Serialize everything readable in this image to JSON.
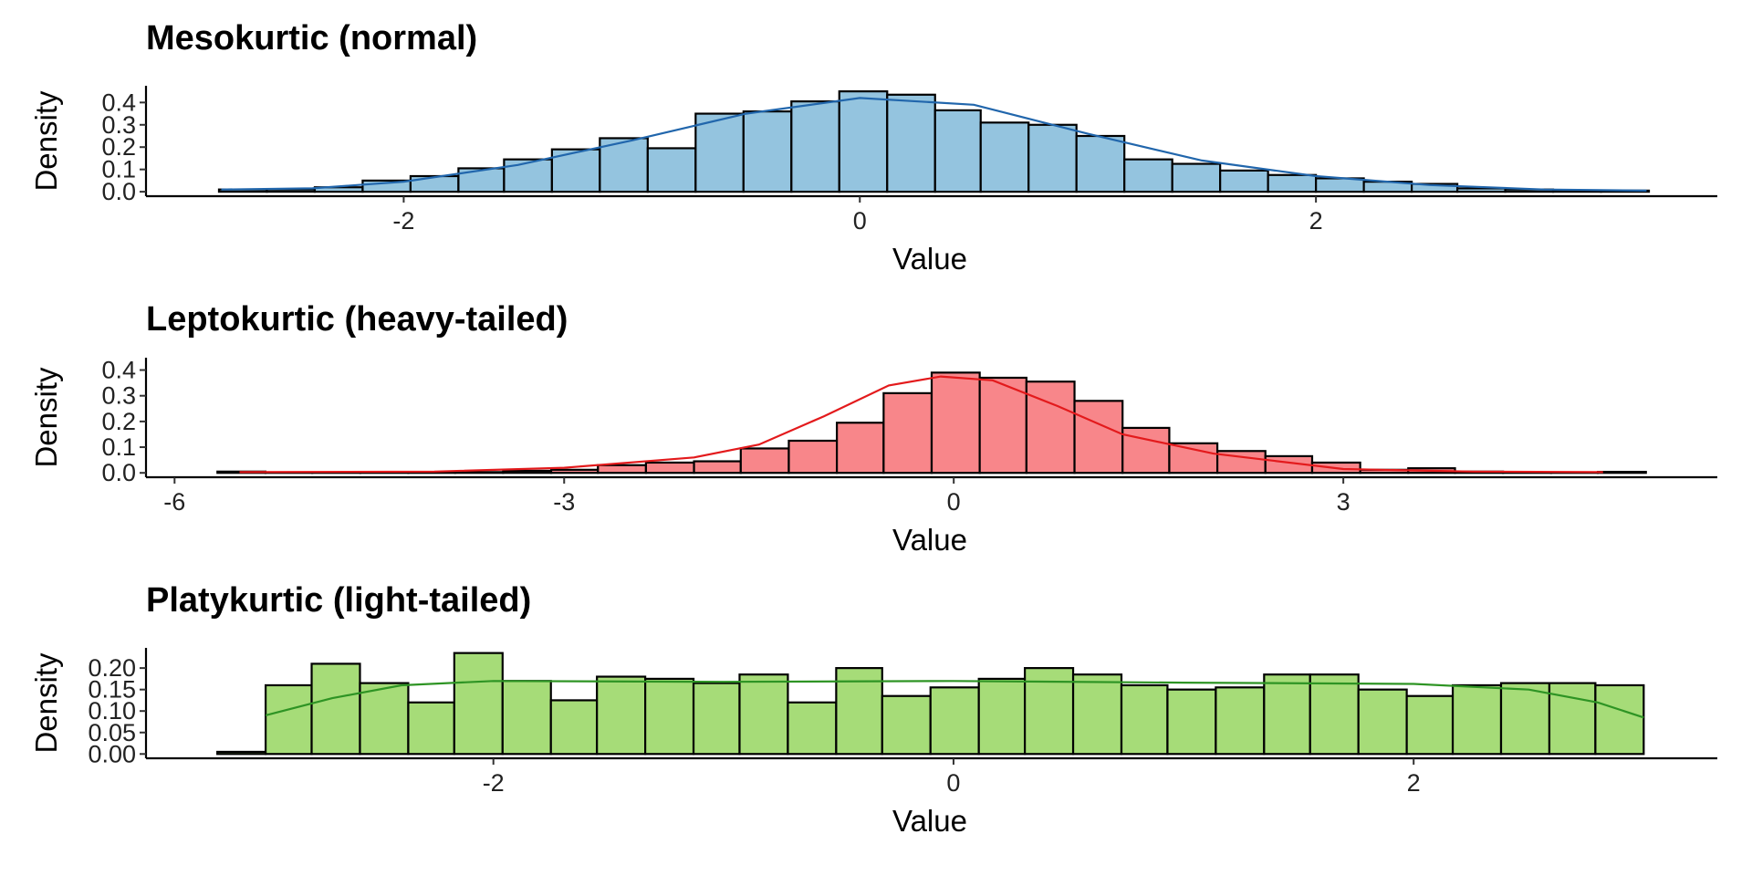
{
  "chart_data": [
    {
      "type": "histogram",
      "title": "Mesokurtic (normal)",
      "xlabel": "Value",
      "ylabel": "Density",
      "bins": [
        -2.81,
        -2.6,
        -2.39,
        -2.18,
        -1.97,
        -1.76,
        -1.56,
        -1.35,
        -1.14,
        -0.93,
        -0.72,
        -0.51,
        -0.3,
        -0.09,
        0.12,
        0.33,
        0.53,
        0.74,
        0.95,
        1.16,
        1.37,
        1.58,
        1.79,
        2.0,
        2.21,
        2.42,
        2.62,
        2.83,
        3.04,
        3.25,
        3.46
      ],
      "values": [
        0.01,
        0.01,
        0.02,
        0.05,
        0.07,
        0.105,
        0.145,
        0.19,
        0.24,
        0.195,
        0.35,
        0.36,
        0.405,
        0.45,
        0.435,
        0.365,
        0.31,
        0.3,
        0.25,
        0.145,
        0.125,
        0.095,
        0.075,
        0.06,
        0.045,
        0.035,
        0.015,
        0.01,
        0.005,
        0.005
      ],
      "color": "#94c4df",
      "edgecolor": "#000000",
      "density_curve": {
        "x": [
          -2.8,
          -2.4,
          -2,
          -1.5,
          -1,
          -0.5,
          0,
          0.5,
          1,
          1.5,
          2,
          2.5,
          3,
          3.45
        ],
        "values": [
          0.01,
          0.015,
          0.045,
          0.12,
          0.23,
          0.35,
          0.42,
          0.39,
          0.26,
          0.14,
          0.07,
          0.03,
          0.01,
          0.005
        ],
        "color": "#2166ac"
      },
      "xlim": [
        -3.13,
        3.76
      ],
      "ylim": [
        -0.02,
        0.475
      ],
      "xticks": [
        -2,
        0,
        2
      ],
      "yticks": [
        {
          "value": 0,
          "label": "0.0"
        },
        0.1,
        0.2,
        0.3,
        0.4
      ]
    },
    {
      "type": "histogram",
      "title": "Leptokurtic (heavy-tailed)",
      "xlabel": "Value",
      "ylabel": "Density",
      "bins": [
        -5.67,
        -5.3,
        -4.94,
        -4.57,
        -4.2,
        -3.84,
        -3.47,
        -3.1,
        -2.74,
        -2.37,
        -2.0,
        -1.64,
        -1.27,
        -0.9,
        -0.54,
        -0.17,
        0.2,
        0.56,
        0.93,
        1.3,
        1.66,
        2.03,
        2.4,
        2.76,
        3.13,
        3.5,
        3.86,
        4.23,
        4.6,
        4.96,
        5.33
      ],
      "values": [
        0.005,
        0.002,
        0.001,
        0.002,
        0.002,
        0.003,
        0.008,
        0.012,
        0.03,
        0.04,
        0.045,
        0.095,
        0.125,
        0.195,
        0.31,
        0.39,
        0.37,
        0.355,
        0.28,
        0.175,
        0.115,
        0.085,
        0.065,
        0.04,
        0.012,
        0.018,
        0.005,
        0.002,
        0.002,
        0.004
      ],
      "color": "#f8868a",
      "edgecolor": "#000000",
      "density_curve": {
        "x": [
          -5.5,
          -4,
          -3,
          -2,
          -1.5,
          -1,
          -0.5,
          -0.1,
          0.3,
          0.8,
          1.3,
          2,
          3,
          4,
          5
        ],
        "values": [
          0.003,
          0.005,
          0.02,
          0.06,
          0.11,
          0.22,
          0.34,
          0.375,
          0.36,
          0.26,
          0.15,
          0.075,
          0.015,
          0.005,
          0.003
        ],
        "color": "#e31a1c"
      },
      "xlim": [
        -6.22,
        5.88
      ],
      "ylim": [
        -0.017,
        0.448
      ],
      "xticks": [
        -6,
        -3,
        0,
        3
      ],
      "yticks": [
        {
          "value": 0,
          "label": "0.0"
        },
        0.1,
        0.2,
        0.3,
        0.4
      ]
    },
    {
      "type": "histogram",
      "title": "Platykurtic (light-tailed)",
      "xlabel": "Value",
      "ylabel": "Density",
      "bins": [
        -3.2,
        -2.99,
        -2.79,
        -2.58,
        -2.37,
        -2.17,
        -1.96,
        -1.75,
        -1.55,
        -1.34,
        -1.13,
        -0.93,
        -0.72,
        -0.51,
        -0.31,
        -0.1,
        0.11,
        0.31,
        0.52,
        0.73,
        0.93,
        1.14,
        1.35,
        1.55,
        1.76,
        1.97,
        2.17,
        2.38,
        2.59,
        2.79,
        3.0
      ],
      "values": [
        0.005,
        0.16,
        0.21,
        0.165,
        0.12,
        0.235,
        0.17,
        0.125,
        0.18,
        0.175,
        0.165,
        0.185,
        0.12,
        0.2,
        0.135,
        0.155,
        0.175,
        0.2,
        0.185,
        0.16,
        0.15,
        0.155,
        0.185,
        0.185,
        0.15,
        0.135,
        0.16,
        0.165,
        0.165,
        0.16
      ],
      "color": "#a6dc78",
      "edgecolor": "#000000",
      "density_curve": {
        "x": [
          -2.99,
          -2.7,
          -2.4,
          -2,
          -1,
          0,
          1,
          2,
          2.5,
          2.8,
          3
        ],
        "values": [
          0.09,
          0.13,
          0.16,
          0.17,
          0.168,
          0.17,
          0.166,
          0.163,
          0.15,
          0.12,
          0.085
        ],
        "color": "#2e9424"
      },
      "xlim": [
        -3.51,
        3.32
      ],
      "ylim": [
        -0.01,
        0.247
      ],
      "xticks": [
        -2,
        0,
        2
      ],
      "yticks": [
        {
          "value": 0,
          "label": "0.00"
        },
        {
          "value": 0.05,
          "label": "0.05"
        },
        {
          "value": 0.1,
          "label": "0.10"
        },
        {
          "value": 0.15,
          "label": "0.15"
        },
        {
          "value": 0.2,
          "label": "0.20"
        }
      ]
    }
  ]
}
